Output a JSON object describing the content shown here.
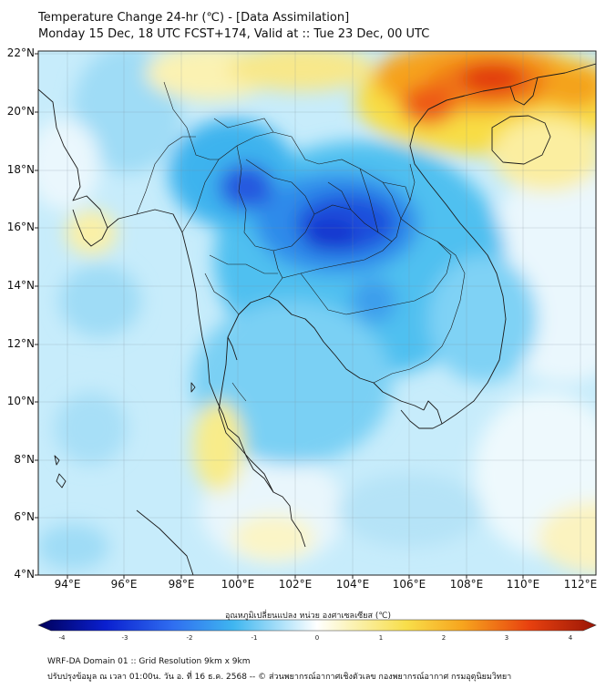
{
  "header": {
    "title_line1": "Temperature Change 24-hr (℃) - [Data Assimilation]",
    "title_line2": "Monday 15 Dec, 18 UTC FCST+174, Valid at :: Tue 23 Dec, 00 UTC"
  },
  "map": {
    "lat_labels": [
      "22°N",
      "20°N",
      "18°N",
      "16°N",
      "14°N",
      "12°N",
      "10°N",
      "8°N",
      "6°N",
      "4°N"
    ],
    "lon_labels": [
      "94°E",
      "96°E",
      "98°E",
      "100°E",
      "102°E",
      "104°E",
      "106°E",
      "108°E",
      "110°E",
      "112°E"
    ]
  },
  "colorbar": {
    "label": "อุณหภูมิเปลี่ยนแปลง หน่วย องศาเซลเซียส (℃)",
    "ticks": [
      "-4",
      "-3",
      "-2",
      "-1",
      "0",
      "1",
      "2",
      "3",
      "4"
    ],
    "min": -4,
    "max": 4,
    "colors": [
      "#00005a",
      "#0a1fcf",
      "#2f6df0",
      "#3fb6f0",
      "#bfe8fb",
      "#ffffff",
      "#fbf3b8",
      "#f8de4a",
      "#f7a51e",
      "#e8410f",
      "#9a1606"
    ]
  },
  "footer": {
    "line1": "WRF-DA Domain 01 :: Grid Resolution 9km x 9km",
    "line2": "ปรับปรุงข้อมูล ณ เวลา 01:00น. วัน อ. ที่ 16 ธ.ค. 2568 -- © ส่วนพยากรณ์อากาศเชิงตัวเลข กองพยากรณ์อากาศ กรมอุตุนิยมวิทยา"
  }
}
